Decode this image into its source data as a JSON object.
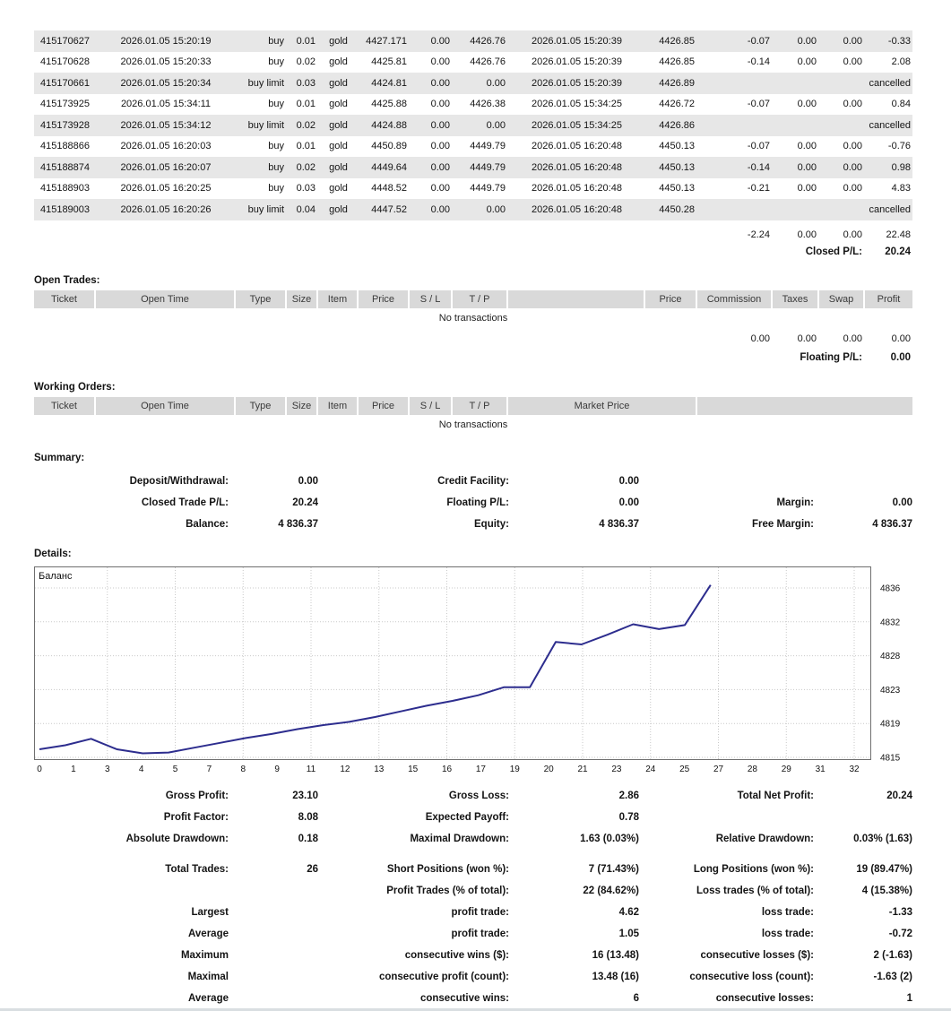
{
  "colors": {
    "row_stripe": "#e7e7e7",
    "header_bg": "#d9d9d9",
    "chart_line": "#2d2d8e",
    "grid_line": "#c9c9c9"
  },
  "closed_trades": {
    "rows": [
      [
        "415170627",
        "2026.01.05 15:20:19",
        "buy",
        "0.01",
        "gold",
        "4427.171",
        "0.00",
        "4426.76",
        "2026.01.05 15:20:39",
        "4426.85",
        "-0.07",
        "0.00",
        "0.00",
        "-0.33"
      ],
      [
        "415170628",
        "2026.01.05 15:20:33",
        "buy",
        "0.02",
        "gold",
        "4425.81",
        "0.00",
        "4426.76",
        "2026.01.05 15:20:39",
        "4426.85",
        "-0.14",
        "0.00",
        "0.00",
        "2.08"
      ],
      [
        "415170661",
        "2026.01.05 15:20:34",
        "buy limit",
        "0.03",
        "gold",
        "4424.81",
        "0.00",
        "0.00",
        "2026.01.05 15:20:39",
        "4426.89",
        "",
        "",
        "",
        "cancelled"
      ],
      [
        "415173925",
        "2026.01.05 15:34:11",
        "buy",
        "0.01",
        "gold",
        "4425.88",
        "0.00",
        "4426.38",
        "2026.01.05 15:34:25",
        "4426.72",
        "-0.07",
        "0.00",
        "0.00",
        "0.84"
      ],
      [
        "415173928",
        "2026.01.05 15:34:12",
        "buy limit",
        "0.02",
        "gold",
        "4424.88",
        "0.00",
        "0.00",
        "2026.01.05 15:34:25",
        "4426.86",
        "",
        "",
        "",
        "cancelled"
      ],
      [
        "415188866",
        "2026.01.05 16:20:03",
        "buy",
        "0.01",
        "gold",
        "4450.89",
        "0.00",
        "4449.79",
        "2026.01.05 16:20:48",
        "4450.13",
        "-0.07",
        "0.00",
        "0.00",
        "-0.76"
      ],
      [
        "415188874",
        "2026.01.05 16:20:07",
        "buy",
        "0.02",
        "gold",
        "4449.64",
        "0.00",
        "4449.79",
        "2026.01.05 16:20:48",
        "4450.13",
        "-0.14",
        "0.00",
        "0.00",
        "0.98"
      ],
      [
        "415188903",
        "2026.01.05 16:20:25",
        "buy",
        "0.03",
        "gold",
        "4448.52",
        "0.00",
        "4449.79",
        "2026.01.05 16:20:48",
        "4450.13",
        "-0.21",
        "0.00",
        "0.00",
        "4.83"
      ],
      [
        "415189003",
        "2026.01.05 16:20:26",
        "buy limit",
        "0.04",
        "gold",
        "4447.52",
        "0.00",
        "0.00",
        "2026.01.05 16:20:48",
        "4450.28",
        "",
        "",
        "",
        "cancelled"
      ]
    ],
    "totals": [
      "-2.24",
      "0.00",
      "0.00",
      "22.48"
    ],
    "closed_pl_label": "Closed P/L:",
    "closed_pl_value": "20.24"
  },
  "open_trades": {
    "title": "Open Trades:",
    "headers": [
      "Ticket",
      "Open Time",
      "Type",
      "Size",
      "Item",
      "Price",
      "S / L",
      "T / P",
      "",
      "Price",
      "Commission",
      "Taxes",
      "Swap",
      "Profit"
    ],
    "empty_text": "No transactions",
    "totals": [
      "0.00",
      "0.00",
      "0.00",
      "0.00"
    ],
    "floating_pl_label": "Floating P/L:",
    "floating_pl_value": "0.00"
  },
  "working_orders": {
    "title": "Working Orders:",
    "headers": [
      "Ticket",
      "Open Time",
      "Type",
      "Size",
      "Item",
      "Price",
      "S / L",
      "T / P",
      "Market Price",
      ""
    ],
    "empty_text": "No transactions"
  },
  "summary": {
    "title": "Summary:",
    "rows": [
      [
        "Deposit/Withdrawal:",
        "0.00",
        "Credit Facility:",
        "0.00",
        "",
        ""
      ],
      [
        "Closed Trade P/L:",
        "20.24",
        "Floating P/L:",
        "0.00",
        "Margin:",
        "0.00"
      ],
      [
        "Balance:",
        "4 836.37",
        "Equity:",
        "4 836.37",
        "Free Margin:",
        "4 836.37"
      ]
    ]
  },
  "details": {
    "title": "Details:",
    "chart_data": {
      "type": "line",
      "title": "Баланс",
      "legend_position": "top-left-inside",
      "grid": true,
      "xlim": [
        0,
        32
      ],
      "ylim": [
        4814,
        4838.5
      ],
      "x_tick_labels": [
        "0",
        "1",
        "3",
        "4",
        "5",
        "7",
        "8",
        "9",
        "11",
        "12",
        "13",
        "15",
        "16",
        "17",
        "19",
        "20",
        "21",
        "23",
        "24",
        "25",
        "27",
        "28",
        "29",
        "31",
        "32"
      ],
      "y_tick_labels": [
        "4836",
        "4832",
        "4828",
        "4823",
        "4819",
        "4815"
      ],
      "line_color": "#2d2d8e",
      "series": [
        {
          "name": "Баланс",
          "x": [
            0,
            1,
            2,
            3,
            4,
            5,
            6,
            7,
            8,
            9,
            10,
            11,
            12,
            13,
            14,
            15,
            16,
            17,
            18,
            19,
            20,
            21,
            22,
            23,
            24,
            25,
            26
          ],
          "values": [
            4816.0,
            4816.5,
            4817.3,
            4816.0,
            4815.5,
            4815.6,
            4816.2,
            4816.8,
            4817.4,
            4817.9,
            4818.5,
            4819.0,
            4819.4,
            4820.0,
            4820.7,
            4821.4,
            4822.0,
            4822.7,
            4823.7,
            4823.7,
            4829.3,
            4829.0,
            4830.2,
            4831.5,
            4830.9,
            4831.4,
            4836.37
          ]
        }
      ]
    }
  },
  "statistics": {
    "groups": [
      {
        "rows": [
          [
            "Gross Profit:",
            "23.10",
            "Gross Loss:",
            "2.86",
            "Total Net Profit:",
            "20.24"
          ],
          [
            "Profit Factor:",
            "8.08",
            "Expected Payoff:",
            "0.78",
            "",
            ""
          ],
          [
            "Absolute Drawdown:",
            "0.18",
            "Maximal Drawdown:",
            "1.63 (0.03%)",
            "Relative Drawdown:",
            "0.03% (1.63)"
          ]
        ]
      },
      {
        "rows": [
          [
            "Total Trades:",
            "26",
            "Short Positions (won %):",
            "7 (71.43%)",
            "Long Positions (won %):",
            "19 (89.47%)"
          ],
          [
            "",
            "",
            "Profit Trades (% of total):",
            "22 (84.62%)",
            "Loss trades (% of total):",
            "4 (15.38%)"
          ]
        ]
      },
      {
        "rows": [
          [
            "Largest",
            "",
            "profit trade:",
            "4.62",
            "loss trade:",
            "-1.33"
          ],
          [
            "Average",
            "",
            "profit trade:",
            "1.05",
            "loss trade:",
            "-0.72"
          ],
          [
            "Maximum",
            "",
            "consecutive wins ($):",
            "16 (13.48)",
            "consecutive losses ($):",
            "2 (-1.63)"
          ],
          [
            "Maximal",
            "",
            "consecutive profit (count):",
            "13.48 (16)",
            "consecutive loss (count):",
            "-1.63 (2)"
          ],
          [
            "Average",
            "",
            "consecutive wins:",
            "6",
            "consecutive losses:",
            "1"
          ]
        ]
      }
    ]
  }
}
